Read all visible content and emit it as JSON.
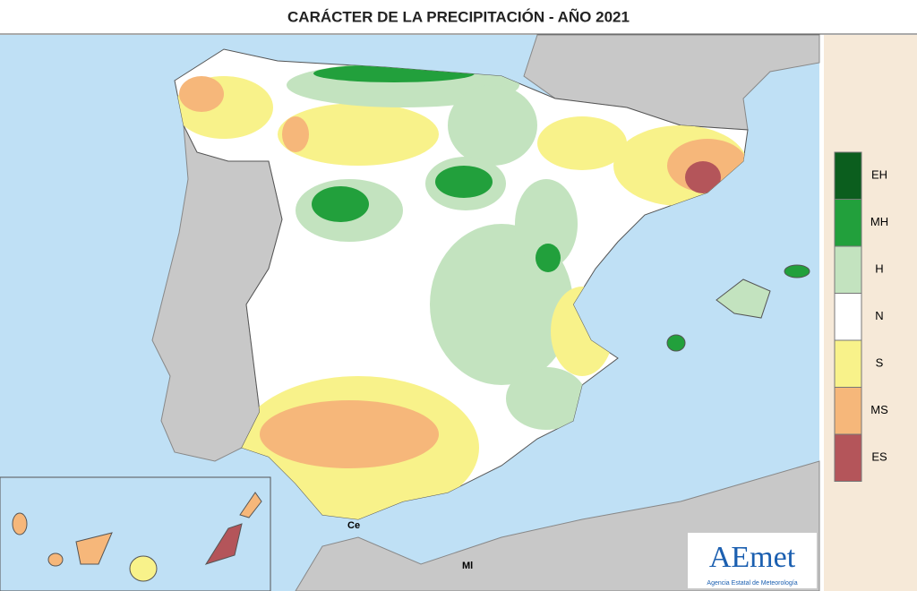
{
  "title": "CARÁCTER DE LA PRECIPITACIÓN - AÑO  2021",
  "legend": [
    {
      "label": "EH",
      "color": "#0b5e1e"
    },
    {
      "label": "MH",
      "color": "#22a03c"
    },
    {
      "label": "H",
      "color": "#c3e3bf"
    },
    {
      "label": "N",
      "color": "#ffffff"
    },
    {
      "label": "S",
      "color": "#f8f28a"
    },
    {
      "label": "MS",
      "color": "#f6b77a"
    },
    {
      "label": "ES",
      "color": "#b4555a"
    }
  ],
  "places": [
    "Ce",
    "Ml"
  ],
  "logo": {
    "name": "AEmet",
    "subtitle": "Agencia Estatal de Meteorología"
  }
}
